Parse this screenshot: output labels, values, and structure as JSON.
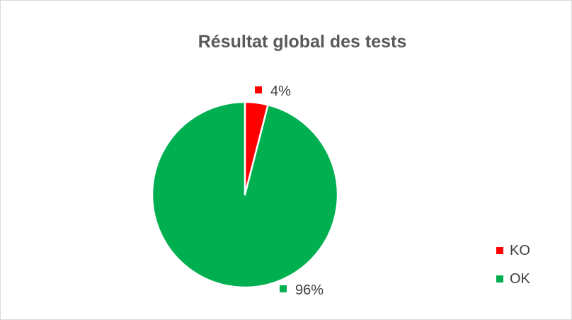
{
  "chart_data": {
    "type": "pie",
    "title": "Résultat global des tests",
    "categories": [
      "KO",
      "OK"
    ],
    "values": [
      4,
      96
    ],
    "data_labels": [
      "4%",
      "96%"
    ],
    "colors": [
      "#ff0000",
      "#00b050"
    ],
    "legend": {
      "placement": "bottom-right",
      "entries": [
        "KO",
        "OK"
      ]
    }
  }
}
